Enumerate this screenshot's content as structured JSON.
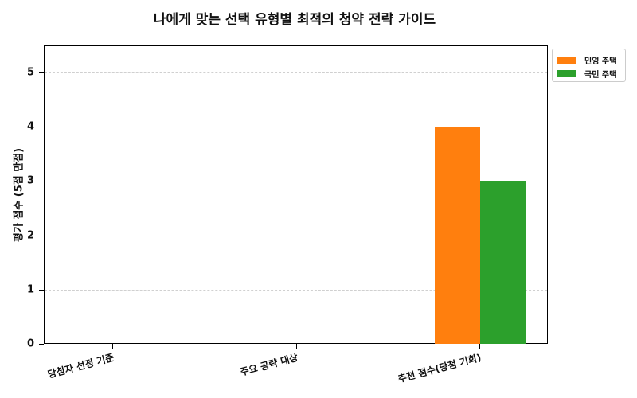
{
  "chart_data": {
    "type": "bar",
    "title": "나에게 맞는 선택 유형별 최적의 청약 전략 가이드",
    "xlabel": "",
    "ylabel": "평가 점수 (5점 만점)",
    "categories": [
      "당첨자 선정 기준",
      "주요 공략 대상",
      "추천 점수(당첨 기회)"
    ],
    "series": [
      {
        "name": "민영 주택",
        "color": "#ff7f0e",
        "values": [
          0,
          0,
          4
        ]
      },
      {
        "name": "국민 주택",
        "color": "#2ca02c",
        "values": [
          0,
          0,
          3
        ]
      }
    ],
    "ylim": [
      0,
      5.5
    ],
    "yticks": [
      0,
      1,
      2,
      3,
      4,
      5
    ],
    "grid": true,
    "legend_position": "outside upper right"
  },
  "labels": {
    "title": "나에게 맞는 선택 유형별 최적의 청약 전략 가이드",
    "ylabel": "평가 점수 (5점 만점)",
    "yticks": [
      "0",
      "1",
      "2",
      "3",
      "4",
      "5"
    ],
    "categories": [
      "당첨자 선정 기준",
      "주요 공략 대상",
      "추천 점수(당첨 기회)"
    ],
    "legend": [
      "민영 주택",
      "국민 주택"
    ]
  }
}
